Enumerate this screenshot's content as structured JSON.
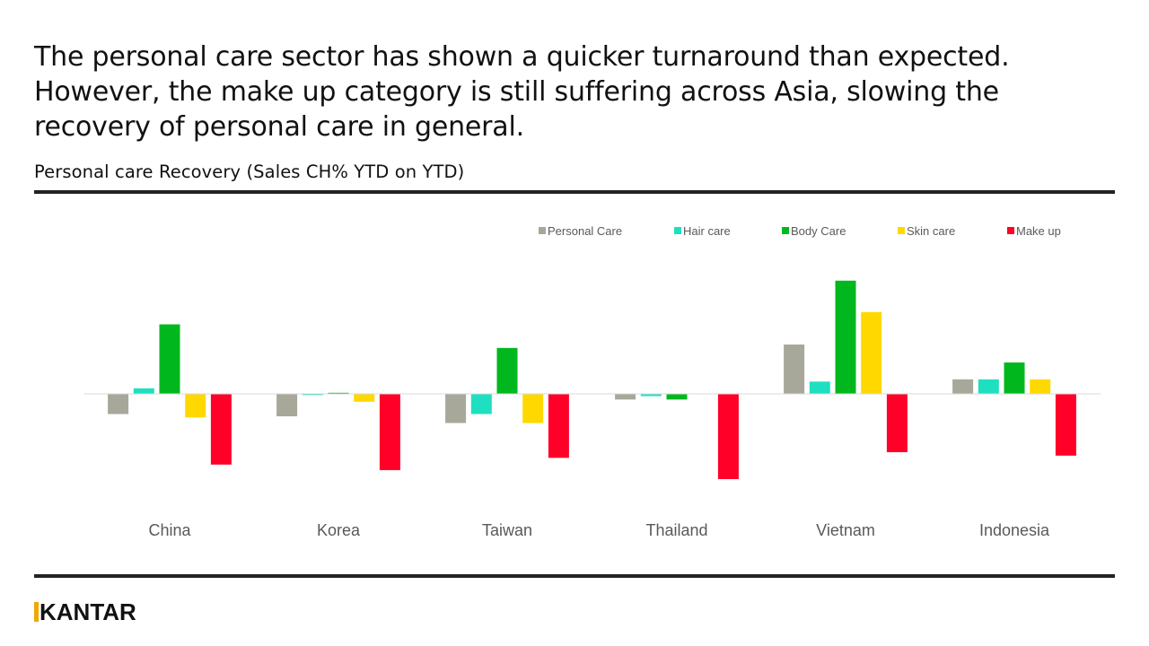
{
  "headline": "The personal care sector has shown a quicker turnaround than expected. However, the make up category is still suffering across Asia, slowing the recovery of personal care in general.",
  "subtitle": "Personal care Recovery (Sales CH% YTD on YTD)",
  "logo_text": "KANTAR",
  "chart_data": {
    "type": "bar",
    "title": "Personal care Recovery (Sales CH% YTD on YTD)",
    "xlabel": "",
    "ylabel": "",
    "grid": false,
    "legend_position": "top-right",
    "categories": [
      "China",
      "Korea",
      "Taiwan",
      "Thailand",
      "Vietnam",
      "Indonesia"
    ],
    "series": [
      {
        "name": "Personal Care",
        "color": "#a8a89a",
        "values": [
          -9,
          -10,
          -13,
          -2.5,
          22,
          6.5
        ]
      },
      {
        "name": "Hair care",
        "color": "#1ee0c0",
        "values": [
          2.5,
          -0.5,
          -9,
          -1,
          5.5,
          6.5
        ]
      },
      {
        "name": "Body Care",
        "color": "#00b81e",
        "values": [
          31,
          0.5,
          20.5,
          -2.5,
          50.5,
          14
        ]
      },
      {
        "name": "Skin care",
        "color": "#ffd800",
        "values": [
          -10.5,
          -3.5,
          -13,
          0,
          36.5,
          6.5
        ]
      },
      {
        "name": "Make up",
        "color": "#ff0028",
        "values": [
          -31.5,
          -34,
          -28.5,
          -38,
          -26,
          -27.5
        ]
      }
    ],
    "ylim": [
      -50,
      60
    ]
  }
}
